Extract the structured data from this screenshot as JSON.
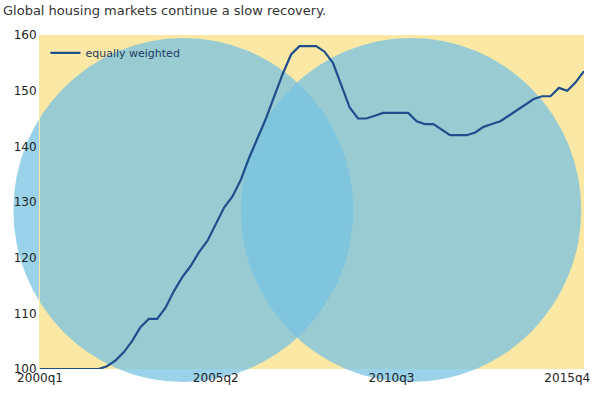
{
  "chart_data": {
    "type": "line",
    "title": "Global housing markets continue a slow recovery.",
    "categories": [
      "2000q1",
      null,
      null,
      null,
      null,
      null,
      null,
      null,
      null,
      null,
      null,
      null,
      null,
      null,
      null,
      null,
      null,
      null,
      null,
      null,
      null,
      "2005q2",
      null,
      null,
      null,
      null,
      null,
      null,
      null,
      null,
      null,
      null,
      null,
      null,
      null,
      null,
      null,
      null,
      null,
      null,
      null,
      null,
      "2010q3",
      null,
      null,
      null,
      null,
      null,
      null,
      null,
      null,
      null,
      null,
      null,
      null,
      null,
      null,
      null,
      null,
      null,
      null,
      null,
      null,
      "2015q4",
      null,
      null
    ],
    "series": [
      {
        "name": "equally weighted",
        "color": "#1f4e8c",
        "values": [
          100,
          100,
          100,
          100,
          100,
          100,
          100,
          100,
          100.5,
          101.5,
          103,
          105,
          107.5,
          109,
          109,
          111,
          114,
          116.5,
          118.5,
          121,
          123,
          126,
          129,
          131,
          134,
          138,
          141.5,
          145,
          149,
          153,
          156.5,
          158,
          158,
          158,
          157,
          155,
          151,
          147,
          145,
          145,
          145.5,
          146,
          146,
          146,
          146,
          144.5,
          144,
          144,
          143,
          142,
          142,
          142,
          142.5,
          143.5,
          144,
          144.5,
          145.5,
          146.5,
          147.5,
          148.5,
          149,
          149,
          150.5,
          150,
          151.5,
          153.5
        ]
      }
    ],
    "ylim": [
      100,
      160
    ],
    "yticks": [
      100,
      110,
      120,
      130,
      140,
      150,
      160
    ],
    "grid": false,
    "legend": "upper left"
  }
}
